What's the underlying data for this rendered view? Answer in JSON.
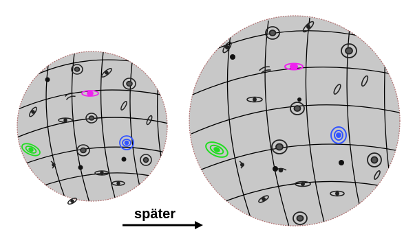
{
  "caption": "später",
  "colors": {
    "sphere_fill": "#c8c8c8",
    "sphere_edge": "#b07070",
    "grid": "#000000",
    "galaxy_green": "#22dd22",
    "galaxy_blue": "#3355ff",
    "galaxy_magenta": "#ee22ee",
    "galaxy_dark": "#222222"
  },
  "icons": [
    "expanding-sphere-icon",
    "galaxy-icon",
    "arrow-right-icon"
  ]
}
